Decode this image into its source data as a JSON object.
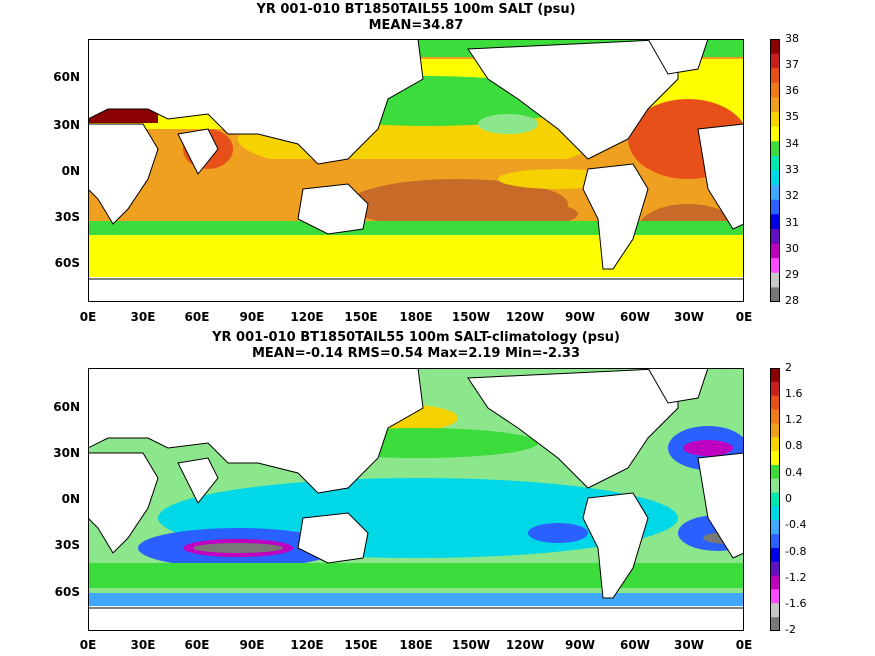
{
  "panels": [
    {
      "title_line1": "YR 001-010 BT1850TAIL55 100m SALT (psu)",
      "title_line2": "MEAN=34.87",
      "lat_labels": [
        "60N",
        "30N",
        "0N",
        "30S",
        "60S"
      ],
      "lon_labels": [
        "0E",
        "30E",
        "60E",
        "90E",
        "120E",
        "150E",
        "180E",
        "150W",
        "120W",
        "90W",
        "60W",
        "30W",
        "0E"
      ],
      "colorbar_labels": [
        "38",
        "37",
        "36",
        "35",
        "34",
        "33",
        "32",
        "31",
        "30",
        "29",
        "28"
      ],
      "colorbar_colors": [
        "#8b0000",
        "#c81e1e",
        "#e8501a",
        "#f07a1a",
        "#f0a020",
        "#f6d200",
        "#ffff00",
        "#3cdc3c",
        "#00e8b0",
        "#00d8e8",
        "#40a8ff",
        "#2a60ff",
        "#0000e6",
        "#6010c0",
        "#c000c0",
        "#ff4cff",
        "#c8c8c8",
        "#787878"
      ]
    },
    {
      "title_line1": "YR 001-010 BT1850TAIL55 100m SALT-climatology (psu)",
      "title_line2": "MEAN=-0.14   RMS=0.54   Max=2.19   Min=-2.33",
      "lat_labels": [
        "60N",
        "30N",
        "0N",
        "30S",
        "60S"
      ],
      "lon_labels": [
        "0E",
        "30E",
        "60E",
        "90E",
        "120E",
        "150E",
        "180E",
        "150W",
        "120W",
        "90W",
        "60W",
        "30W",
        "0E"
      ],
      "colorbar_labels": [
        "2",
        "1.6",
        "1.2",
        "0.8",
        "0.4",
        "0",
        "-0.4",
        "-0.8",
        "-1.2",
        "-1.6",
        "-2"
      ],
      "colorbar_colors": [
        "#8b0000",
        "#c81e1e",
        "#e8501a",
        "#f07a1a",
        "#f0a020",
        "#f6d200",
        "#ffff00",
        "#3cdc3c",
        "#8ce68c",
        "#00e8b0",
        "#00d8e8",
        "#40a8ff",
        "#2a60ff",
        "#0000e6",
        "#6010c0",
        "#c000c0",
        "#ff4cff",
        "#c8c8c8",
        "#787878"
      ]
    }
  ],
  "colors": {
    "land": "#ffffff",
    "coast": "#000000"
  }
}
